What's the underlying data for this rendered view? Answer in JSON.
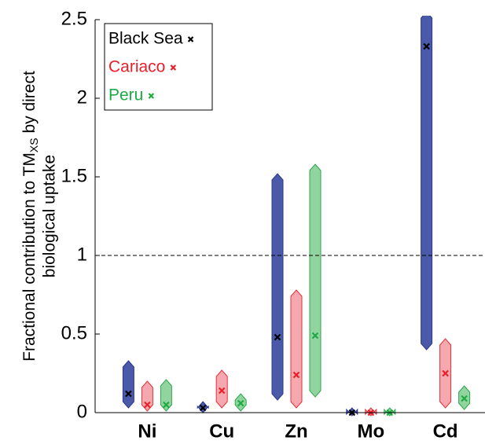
{
  "chart_data": {
    "type": "range",
    "ylabel": [
      "Fractional contribution to TM",
      "XS",
      " by direct",
      "biological uptake"
    ],
    "categories": [
      "Ni",
      "Cu",
      "Zn",
      "Mo",
      "Cd"
    ],
    "series": [
      {
        "name": "Black Sea",
        "color": "#000000",
        "fill": "#4a5aa8",
        "edge": "#2b3990",
        "values": [
          0.12,
          0.03,
          0.48,
          0,
          2.33
        ],
        "low": [
          0.05,
          0.02,
          0.1,
          0,
          0.42
        ],
        "high": [
          0.31,
          0.05,
          1.5,
          0.01,
          2.53
        ]
      },
      {
        "name": "Cariaco",
        "color": "#e8202a",
        "fill": "#f5a8ae",
        "edge": "#e8303a",
        "values": [
          0.05,
          0.14,
          0.24,
          0,
          0.25
        ],
        "low": [
          0.03,
          0.05,
          0.05,
          0,
          0.05
        ],
        "high": [
          0.18,
          0.25,
          0.76,
          0.01,
          0.45
        ]
      },
      {
        "name": "Peru",
        "color": "#1faa44",
        "fill": "#92d4a0",
        "edge": "#2ca84a",
        "values": [
          0.05,
          0.06,
          0.49,
          0,
          0.09
        ],
        "low": [
          0.03,
          0.03,
          0.12,
          0,
          0.04
        ],
        "high": [
          0.19,
          0.1,
          1.56,
          0.01,
          0.15
        ]
      }
    ],
    "ylim": [
      0,
      2.5
    ],
    "yticks": [
      0,
      0.5,
      1,
      1.5,
      2,
      2.5
    ],
    "reference_line": 1,
    "legend": "upper-left"
  }
}
